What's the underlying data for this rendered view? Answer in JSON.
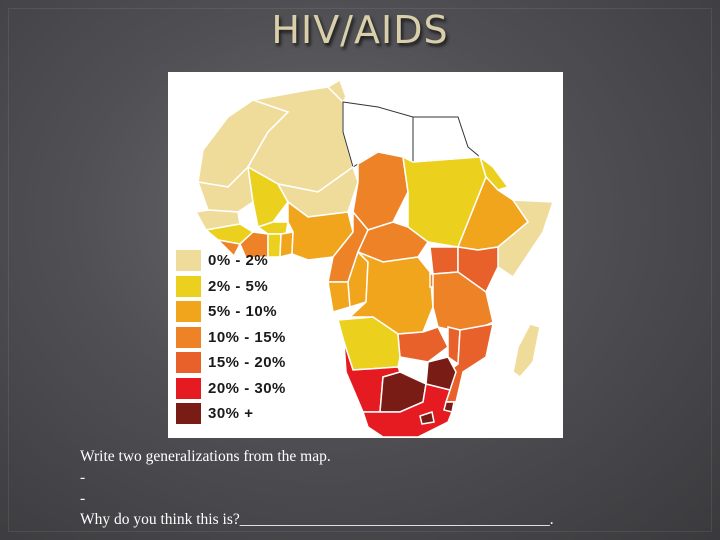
{
  "title": "HIV/AIDS",
  "map": {
    "legend": [
      {
        "label": "0% - 2%",
        "color": "#efdc9a"
      },
      {
        "label": "2% - 5%",
        "color": "#ecd01e"
      },
      {
        "label": "5% - 10%",
        "color": "#f0a51c"
      },
      {
        "label": "10% - 15%",
        "color": "#ed8326"
      },
      {
        "label": "15% - 20%",
        "color": "#e9612a"
      },
      {
        "label": "20% - 30%",
        "color": "#e51b21"
      },
      {
        "label": "30% +",
        "color": "#7a1c16"
      }
    ]
  },
  "prompt": {
    "line1": "Write two generalizations  from the map.",
    "line2": "-",
    "line3": "-",
    "line4": "Why do you think this is?________________________________________."
  }
}
